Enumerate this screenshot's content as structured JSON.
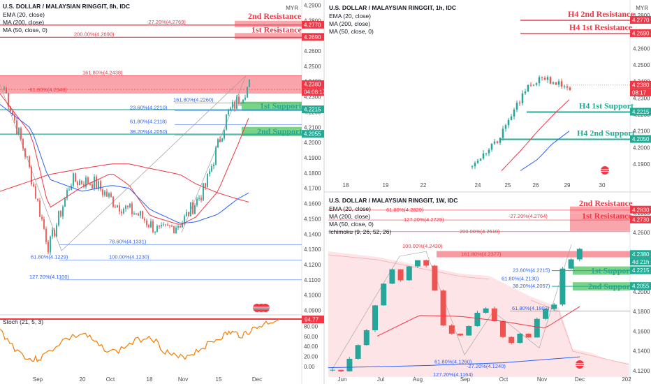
{
  "panels": {
    "p8h": {
      "title": "U.S. DOLLAR / MALAYSIAN RINGGIT, 8h, IDC",
      "indicators": [
        "EMA (20, close)",
        "MA (200, close)",
        "MA (50, close, 0)"
      ],
      "currency": "MYR",
      "price_ticks": [
        "4.2900",
        "4.2800",
        "4.2700",
        "4.2600",
        "4.2500",
        "4.2400",
        "4.2300",
        "4.2200",
        "4.2100",
        "4.2000",
        "4.1900",
        "4.1800",
        "4.1700",
        "4.1600",
        "4.1500",
        "4.1400",
        "4.1300",
        "4.1200",
        "4.1100",
        "4.1000",
        "4.0900"
      ],
      "date_ticks": [
        "Sep",
        "20",
        "Oct",
        "18",
        "Nov",
        "15",
        "Dec"
      ],
      "price_tags": [
        {
          "text": "4.2770",
          "color": "#f23645"
        },
        {
          "text": "4.2690",
          "color": "#f23645"
        },
        {
          "text": "4.2380",
          "color": "#f23645"
        },
        {
          "text": "04:08:17",
          "color": "#f23645"
        },
        {
          "text": "4.2215",
          "color": "#22ab94"
        },
        {
          "text": "4.2055",
          "color": "#22ab94"
        }
      ],
      "zones": [
        {
          "label": "2nd Resistance",
          "color": "#f23645"
        },
        {
          "label": "1st Resistance",
          "color": "#f23645"
        },
        {
          "label": "1st Support",
          "color": "#22ab94"
        },
        {
          "label": "2nd Support",
          "color": "#22ab94"
        }
      ],
      "fib_labels": [
        {
          "text": "-27.20%(4.2769)",
          "color": "#f23645"
        },
        {
          "text": "200.00%(4.2690)",
          "color": "#f23645"
        },
        {
          "text": "161.80%(4.2438)",
          "color": "#f23645"
        },
        {
          "text": "-61.80%(4.2348)",
          "color": "#f23645"
        },
        {
          "text": "161.80%(4.2260)",
          "color": "#2962ff"
        },
        {
          "text": "23.60%(4.2210)",
          "color": "#2962ff"
        },
        {
          "text": "61.80%(4.2118)",
          "color": "#2962ff"
        },
        {
          "text": "38.20%(4.2050)",
          "color": "#2962ff"
        },
        {
          "text": "78.60%(4.1331)",
          "color": "#2962ff"
        },
        {
          "text": "61.80%(4.1229)",
          "color": "#2962ff"
        },
        {
          "text": "100.00%(4.1230)",
          "color": "#2962ff"
        },
        {
          "text": "127.20%(4.1100)",
          "color": "#2962ff"
        }
      ]
    },
    "stoch": {
      "title": "Stoch (21, 5, 3)",
      "ticks": [
        "80.00",
        "60.00",
        "40.00",
        "20.00",
        "0.00"
      ],
      "value": "94.77"
    },
    "p1h": {
      "title": "U.S. DOLLAR / MALAYSIAN RINGGIT, 1h, IDC",
      "indicators": [
        "EMA (20, close)",
        "MA (200, close)",
        "MA (50, close, 0)"
      ],
      "currency": "MYR",
      "price_ticks": [
        "4.2800",
        "4.2700",
        "4.2600",
        "4.2500",
        "4.2400",
        "4.2300",
        "4.2200",
        "4.2100",
        "4.2000",
        "4.1900"
      ],
      "date_ticks": [
        "18",
        "19",
        "22",
        "24",
        "25",
        "26",
        "29",
        "30"
      ],
      "price_tags": [
        {
          "text": "4.2770",
          "color": "#f23645"
        },
        {
          "text": "4.2690",
          "color": "#f23645"
        },
        {
          "text": "4.2380",
          "color": "#f23645"
        },
        {
          "text": "08:17",
          "color": "#f23645"
        },
        {
          "text": "4.2215",
          "color": "#22ab94"
        },
        {
          "text": "4.2050",
          "color": "#22ab94"
        }
      ],
      "zones": [
        {
          "label": "H4 2nd Resistance",
          "color": "#f23645"
        },
        {
          "label": "H4 1st Resistance",
          "color": "#f23645"
        },
        {
          "label": "H4 1st Support",
          "color": "#22ab94"
        },
        {
          "label": "H4 2nd Support",
          "color": "#22ab94"
        }
      ]
    },
    "p1w": {
      "title": "U.S. DOLLAR / MALAYSIAN RINGGIT, 1W, IDC",
      "indicators": [
        "EMA (20, close)",
        "MA (200, close)",
        "MA (50, close, 0)",
        "Ichimoku (9, 26, 52, 26)"
      ],
      "currency": "MYR",
      "price_ticks": [
        "4.2800",
        "4.2600",
        "4.2400",
        "4.2200",
        "4.2000",
        "4.1800",
        "4.1600",
        "4.1400",
        "4.1200"
      ],
      "date_ticks": [
        "Jun",
        "Jul",
        "Aug",
        "Sep",
        "Oct",
        "Nov",
        "Dec",
        "202"
      ],
      "price_tags": [
        {
          "text": "4.2830",
          "color": "#f23645"
        },
        {
          "text": "4.2730",
          "color": "#f23645"
        },
        {
          "text": "4.2380",
          "color": "#22ab94"
        },
        {
          "text": "4d 21h",
          "color": "#22ab94"
        },
        {
          "text": "4.2215",
          "color": "#22ab94"
        },
        {
          "text": "4.2055",
          "color": "#22ab94"
        }
      ],
      "zones": [
        {
          "label": "2nd Resistance",
          "color": "#f23645"
        },
        {
          "label": "1st Resistance",
          "color": "#f23645"
        },
        {
          "label": "1st Support",
          "color": "#22ab94"
        },
        {
          "label": "2nd Support",
          "color": "#22ab94"
        }
      ],
      "fib_labels": [
        {
          "text": "61.80%(4.2829)",
          "color": "#f23645"
        },
        {
          "text": "-27.20%(4.2764)",
          "color": "#f23645"
        },
        {
          "text": "127.20%(4.2729)",
          "color": "#f23645"
        },
        {
          "text": "200.00%(4.2610)",
          "color": "#f23645"
        },
        {
          "text": "100.00%(4.2430)",
          "color": "#f23645"
        },
        {
          "text": "161.80%(4.2377)",
          "color": "#f23645"
        },
        {
          "text": "23.60%(4.2215)",
          "color": "#2962ff"
        },
        {
          "text": "61.80%(4.2130)",
          "color": "#2962ff"
        },
        {
          "text": "38.20%(4.2057)",
          "color": "#2962ff"
        },
        {
          "text": "61.80%(4.1803)",
          "color": "#2962ff"
        },
        {
          "text": "61.80%(4.1260)",
          "color": "#2962ff"
        },
        {
          "text": "-27.20%(4.1240)",
          "color": "#2962ff"
        },
        {
          "text": "127.20%(4.1164)",
          "color": "#2962ff"
        }
      ]
    }
  },
  "chart_data": [
    {
      "type": "line",
      "title": "U.S. DOLLAR / MALAYSIAN RINGGIT, 8h, IDC",
      "ylim": [
        4.085,
        4.295
      ],
      "levels": [
        4.277,
        4.269,
        4.2438,
        4.2348,
        4.226,
        4.221,
        4.2118,
        4.205,
        4.1331,
        4.123,
        4.11
      ],
      "series": [
        {
          "name": "EMA (20, close)",
          "x": [
            "Aug 25",
            "Sep",
            "Sep 10",
            "20",
            "Oct",
            "Oct 10",
            "18",
            "Nov",
            "Nov 8",
            "15",
            "Nov 22",
            "Nov 26"
          ],
          "values": [
            4.232,
            4.205,
            4.157,
            4.171,
            4.18,
            4.172,
            4.152,
            4.146,
            4.151,
            4.168,
            4.198,
            4.216
          ]
        },
        {
          "name": "MA (200, close)",
          "x": [
            "Aug 25",
            "Sep",
            "Sep 10",
            "20",
            "Oct",
            "Oct 10",
            "18",
            "Nov",
            "Nov 8",
            "15",
            "Nov 22",
            "Nov 26"
          ],
          "values": [
            4.168,
            4.175,
            4.179,
            4.183,
            4.186,
            4.186,
            4.183,
            4.179,
            4.173,
            4.167,
            4.163,
            4.161
          ]
        },
        {
          "name": "MA (50, close, 0)",
          "x": [
            "Aug 25",
            "Sep",
            "Sep 10",
            "20",
            "Oct",
            "Oct 10",
            "18",
            "Nov",
            "Nov 8",
            "15",
            "Nov 22",
            "Nov 26"
          ],
          "values": [
            4.225,
            4.209,
            4.176,
            4.168,
            4.172,
            4.17,
            4.156,
            4.147,
            4.148,
            4.153,
            4.163,
            4.167
          ]
        },
        {
          "name": "close",
          "x": [
            "Aug 25",
            "Sep",
            "Sep 5",
            "Sep 10",
            "Sep 15",
            "20",
            "Sep 25",
            "Oct",
            "Oct 5",
            "Oct 10",
            "18",
            "Oct 25",
            "Nov",
            "Nov 5",
            "Nov 10",
            "15",
            "Nov 20",
            "Nov 24",
            "Nov 26"
          ],
          "values": [
            4.235,
            4.19,
            4.148,
            4.131,
            4.158,
            4.178,
            4.175,
            4.168,
            4.156,
            4.168,
            4.153,
            4.142,
            4.139,
            4.151,
            4.148,
            4.165,
            4.205,
            4.236,
            4.238
          ]
        }
      ]
    },
    {
      "type": "line",
      "title": "Stoch (21, 5, 3)",
      "ylim": [
        0,
        100
      ],
      "series": [
        {
          "name": "%K",
          "values": [
            72,
            35,
            12,
            18,
            52,
            66,
            42,
            28,
            48,
            62,
            32,
            16,
            26,
            42,
            58,
            68,
            62,
            72,
            86,
            94.77
          ]
        }
      ]
    },
    {
      "type": "line",
      "title": "U.S. DOLLAR / MALAYSIAN RINGGIT, 1h, IDC",
      "ylim": [
        4.186,
        4.292
      ],
      "levels": [
        4.277,
        4.269,
        4.2215,
        4.205
      ],
      "series": [
        {
          "name": "close",
          "x": [
            "24",
            "24.5",
            "25",
            "25.5",
            "26",
            "26.2",
            "26.5",
            "26.8"
          ],
          "values": [
            4.195,
            4.199,
            4.208,
            4.222,
            4.232,
            4.242,
            4.239,
            4.238
          ]
        },
        {
          "name": "EMA (20, close)",
          "x": [
            "24.5",
            "25",
            "25.5",
            "26",
            "26.5",
            "26.8"
          ],
          "values": [
            4.186,
            4.198,
            4.21,
            4.221,
            4.229,
            4.234
          ]
        },
        {
          "name": "MA (50, close, 0)",
          "x": [
            "25",
            "25.5",
            "26",
            "26.5",
            "26.8"
          ],
          "values": [
            4.186,
            4.193,
            4.202,
            4.21,
            4.214
          ]
        }
      ]
    },
    {
      "type": "line",
      "title": "U.S. DOLLAR / MALAYSIAN RINGGIT, 1W, IDC",
      "ylim": [
        4.115,
        4.295
      ],
      "levels": [
        4.283,
        4.273,
        4.261,
        4.2377,
        4.2215,
        4.2055,
        4.1803
      ],
      "series": [
        {
          "name": "close",
          "x": [
            "Jun",
            "Jun 15",
            "Jul",
            "Jul 15",
            "Aug",
            "Aug 15",
            "Sep",
            "Sep 15",
            "Oct",
            "Oct 15",
            "Nov",
            "Nov 8",
            "Nov 15",
            "Nov 22",
            "Nov 29"
          ],
          "values": [
            4.121,
            4.138,
            4.171,
            4.231,
            4.233,
            4.185,
            4.147,
            4.166,
            4.178,
            4.152,
            4.15,
            4.166,
            4.182,
            4.234,
            4.238
          ]
        },
        {
          "name": "EMA (20, close)",
          "x": [
            "Jul",
            "Aug",
            "Sep",
            "Oct",
            "Nov",
            "Nov 29"
          ],
          "values": [
            4.155,
            4.176,
            4.175,
            4.17,
            4.163,
            4.185
          ]
        },
        {
          "name": "MA (50, close, 0)",
          "x": [
            "Jun",
            "Aug",
            "Oct",
            "Nov 29"
          ],
          "values": [
            4.123,
            4.125,
            4.128,
            4.134
          ]
        }
      ]
    }
  ]
}
